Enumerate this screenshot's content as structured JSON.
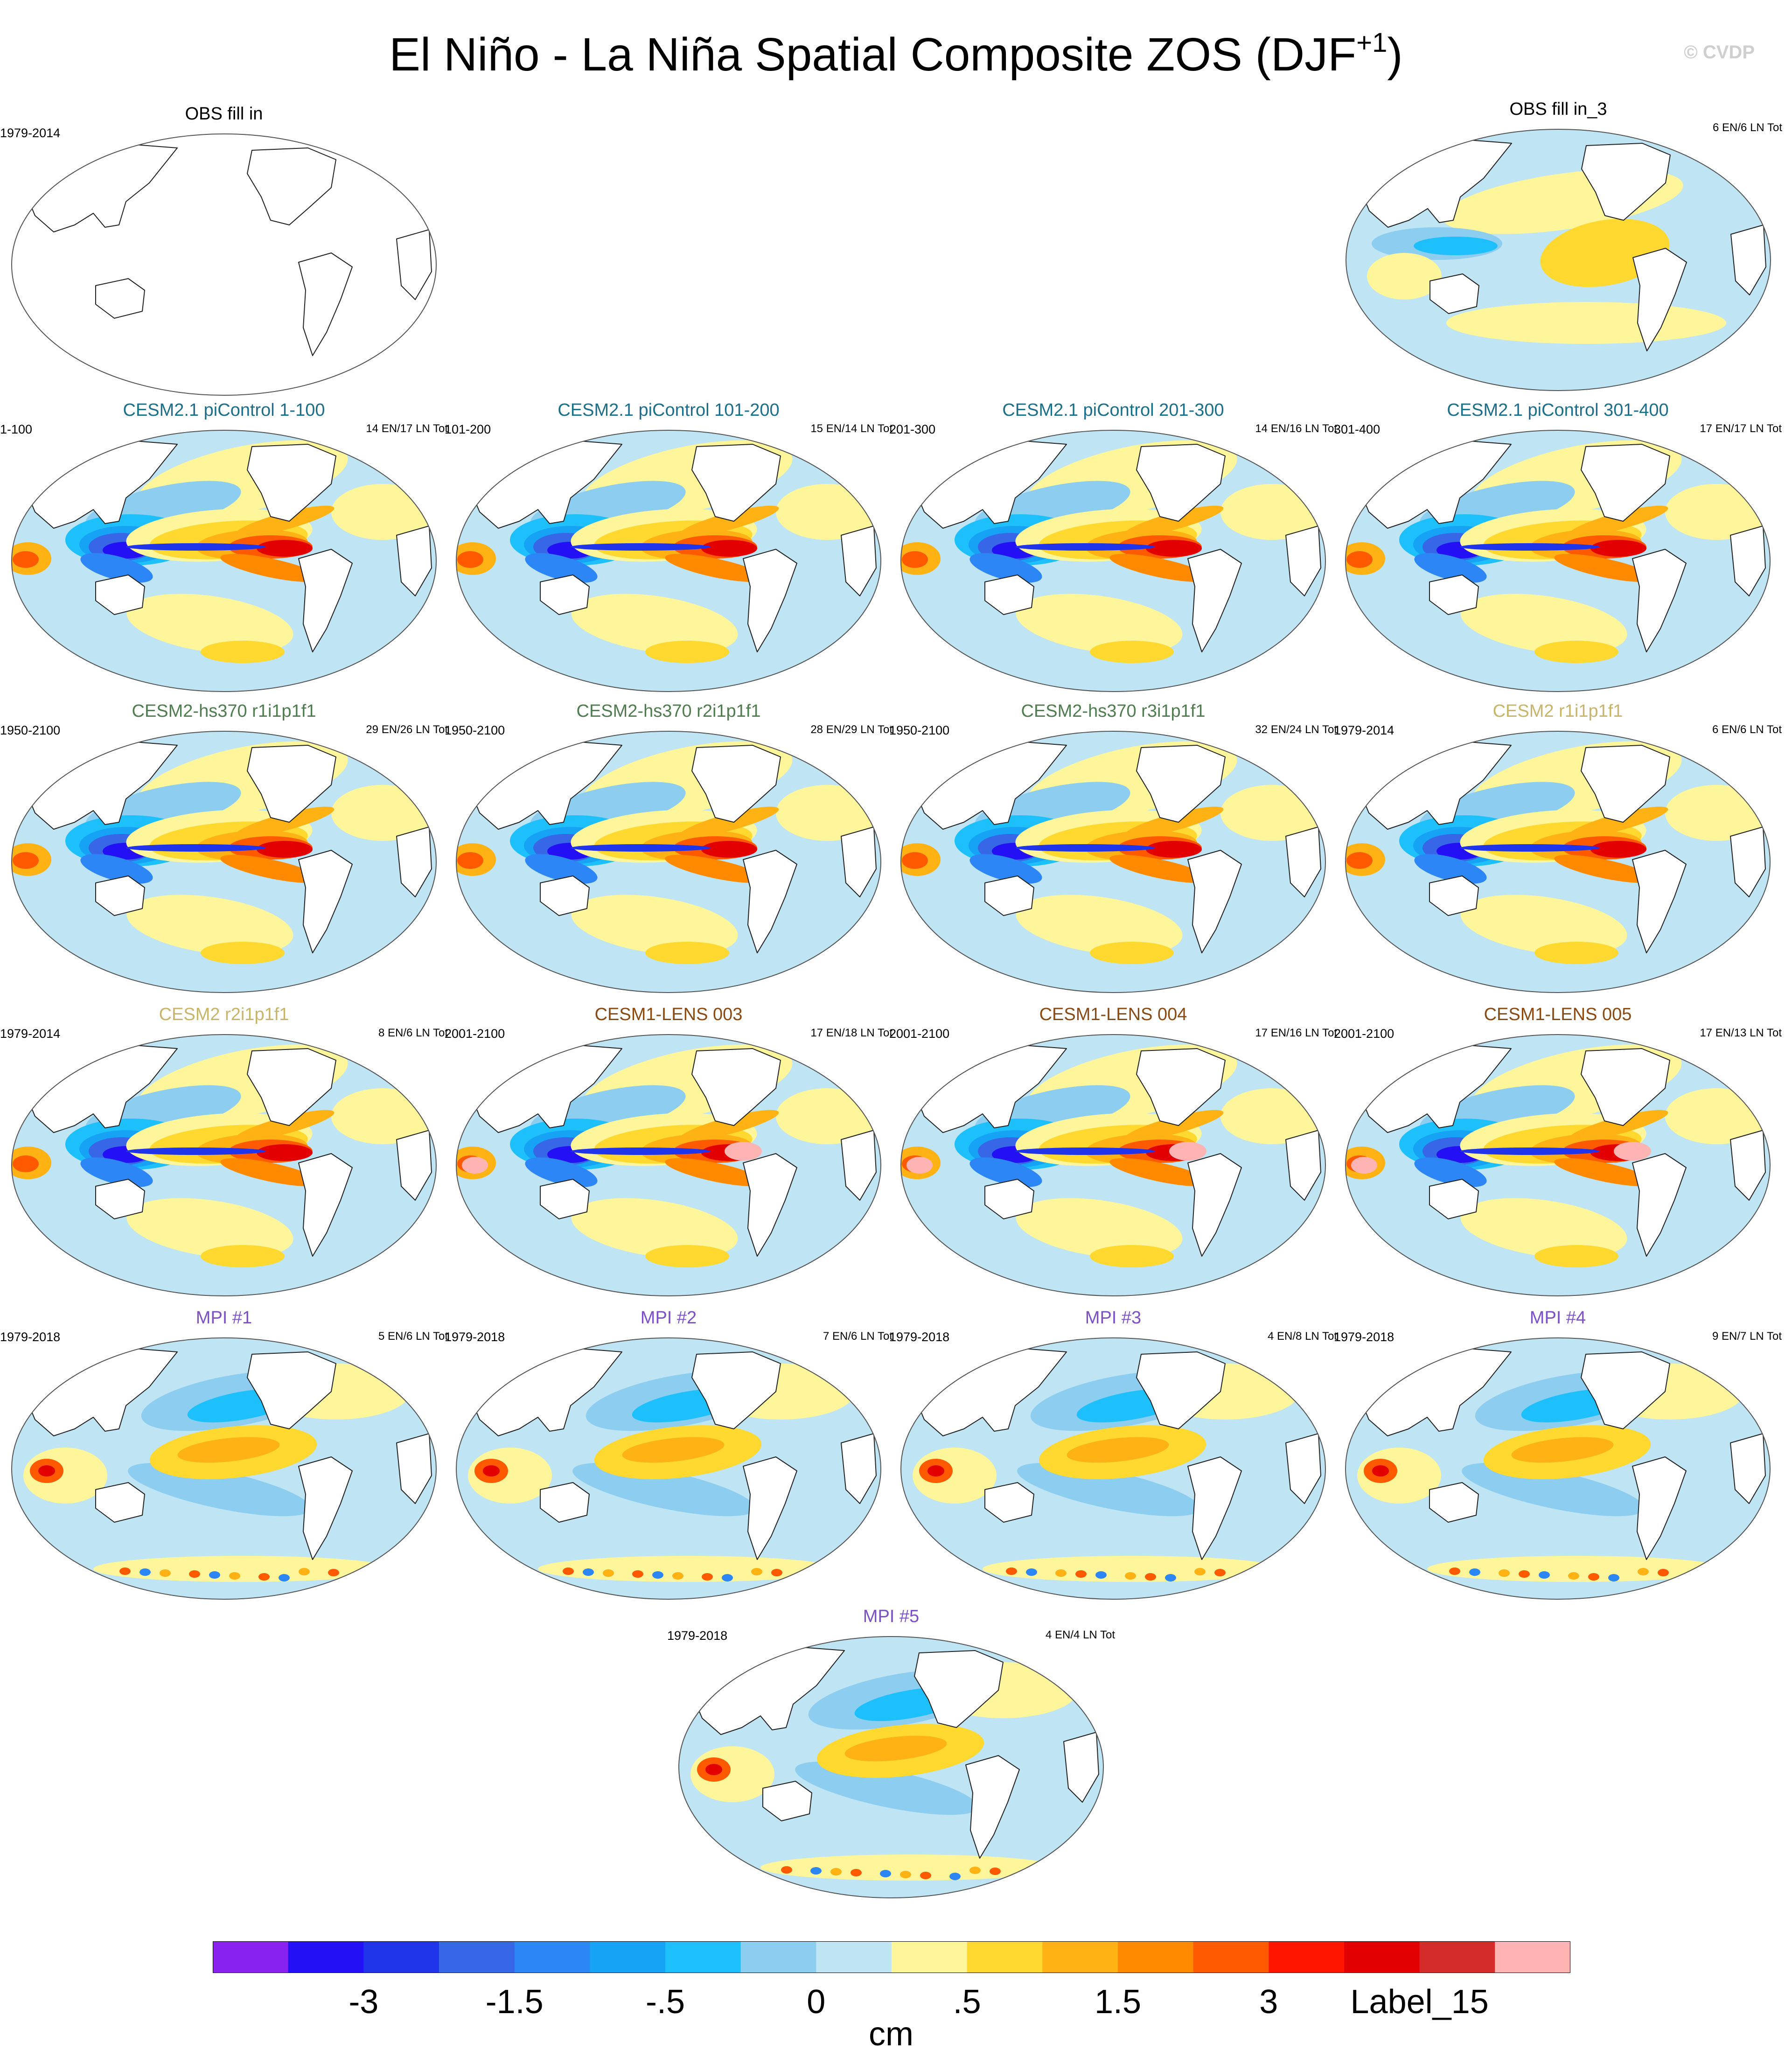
{
  "title": {
    "main": "El Niño - La Niña Spatial Composite ZOS (DJF",
    "superscript": "+1",
    "close": ")"
  },
  "copyright": "© CVDP",
  "colors": {
    "title_cesm21": "#1c6f8a",
    "title_hs370": "#4f7d4f",
    "title_cesm2": "#c8b56a",
    "title_lens": "#8a4a14",
    "title_mpi": "#7b50c9",
    "title_obs": "#000000"
  },
  "panels": [
    {
      "title": "OBS fill in",
      "color": "title_obs",
      "left": "1979-2014",
      "right": "",
      "pattern": "blank"
    },
    {
      "title": "OBS fill in_3",
      "color": "title_obs",
      "left": "",
      "right": "6 EN/6 LN Tot",
      "pattern": "weak"
    },
    {
      "title": "CESM2.1 piControl 1-100",
      "color": "title_cesm21",
      "left": "1-100",
      "right": "14 EN/17 LN Tot",
      "pattern": "strong"
    },
    {
      "title": "CESM2.1 piControl 101-200",
      "color": "title_cesm21",
      "left": "101-200",
      "right": "15 EN/14 LN Tot",
      "pattern": "strong"
    },
    {
      "title": "CESM2.1 piControl 201-300",
      "color": "title_cesm21",
      "left": "201-300",
      "right": "14 EN/16 LN Tot",
      "pattern": "strong"
    },
    {
      "title": "CESM2.1 piControl 301-400",
      "color": "title_cesm21",
      "left": "301-400",
      "right": "17 EN/17 LN Tot",
      "pattern": "strong"
    },
    {
      "title": "CESM2-hs370 r1i1p1f1",
      "color": "title_hs370",
      "left": "1950-2100",
      "right": "29 EN/26 LN Tot",
      "pattern": "strong"
    },
    {
      "title": "CESM2-hs370 r2i1p1f1",
      "color": "title_hs370",
      "left": "1950-2100",
      "right": "28 EN/29 LN Tot",
      "pattern": "strong"
    },
    {
      "title": "CESM2-hs370 r3i1p1f1",
      "color": "title_hs370",
      "left": "1950-2100",
      "right": "32 EN/24 LN Tot",
      "pattern": "strong"
    },
    {
      "title": "CESM2 r1i1p1f1",
      "color": "title_cesm2",
      "left": "1979-2014",
      "right": "6 EN/6 LN Tot",
      "pattern": "strong"
    },
    {
      "title": "CESM2 r2i1p1f1",
      "color": "title_cesm2",
      "left": "1979-2014",
      "right": "8 EN/6 LN Tot",
      "pattern": "strong"
    },
    {
      "title": "CESM1-LENS 003",
      "color": "title_lens",
      "left": "2001-2100",
      "right": "17 EN/18 LN Tot",
      "pattern": "lens"
    },
    {
      "title": "CESM1-LENS 004",
      "color": "title_lens",
      "left": "2001-2100",
      "right": "17 EN/16 LN Tot",
      "pattern": "lens"
    },
    {
      "title": "CESM1-LENS 005",
      "color": "title_lens",
      "left": "2001-2100",
      "right": "17 EN/13 LN Tot",
      "pattern": "lens"
    },
    {
      "title": "MPI #1",
      "color": "title_mpi",
      "left": "1979-2018",
      "right": "5 EN/6 LN Tot",
      "pattern": "mpi"
    },
    {
      "title": "MPI #2",
      "color": "title_mpi",
      "left": "1979-2018",
      "right": "7 EN/6 LN Tot",
      "pattern": "mpi"
    },
    {
      "title": "MPI #3",
      "color": "title_mpi",
      "left": "1979-2018",
      "right": "4 EN/8 LN Tot",
      "pattern": "mpi"
    },
    {
      "title": "MPI #4",
      "color": "title_mpi",
      "left": "1979-2018",
      "right": "9 EN/7 LN Tot",
      "pattern": "mpi"
    },
    {
      "title": "MPI #5",
      "color": "title_mpi",
      "left": "1979-2018",
      "right": "4 EN/4 LN Tot",
      "pattern": "mpi"
    }
  ],
  "colorbar": {
    "colors": [
      "#8722f0",
      "#2410f5",
      "#2035ea",
      "#3766e6",
      "#2d86f5",
      "#16a2f5",
      "#1ec0fb",
      "#8ccdf0",
      "#bfe4f3",
      "#fff59a",
      "#ffd830",
      "#ffb213",
      "#ff8a00",
      "#ff5a00",
      "#ff1500",
      "#e20000",
      "#d42b2b",
      "#ffb4b4"
    ],
    "labels": [
      "-3",
      "-1.5",
      "-.5",
      "0",
      ".5",
      "1.5",
      "3",
      "Label_15"
    ],
    "units": "cm"
  }
}
